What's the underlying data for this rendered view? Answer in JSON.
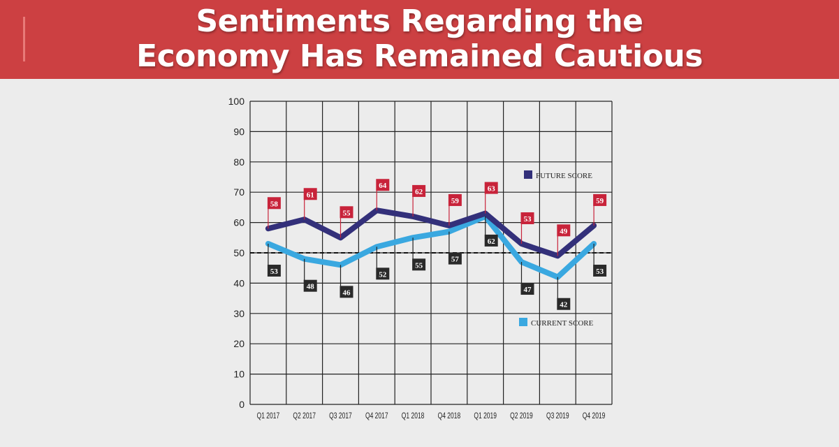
{
  "header": {
    "title_line1": "Sentiments Regarding the",
    "title_line2": "Economy Has Remained Cautious"
  },
  "colors": {
    "banner": "#cc4042",
    "future_line": "#33307a",
    "current_line": "#3aa8e0",
    "future_label_bg": "#c8233a",
    "current_label_bg": "#2a2a2a",
    "grid": "#222222",
    "background": "#ececec"
  },
  "chart_data": {
    "type": "line",
    "categories": [
      "Q1 2017",
      "Q2 2017",
      "Q3 2017",
      "Q4 2017",
      "Q1 2018",
      "Q4 2018",
      "Q1 2019",
      "Q2 2019",
      "Q3 2019",
      "Q4 2019"
    ],
    "series": [
      {
        "name": "FUTURE SCORE",
        "values": [
          58,
          61,
          55,
          64,
          62,
          59,
          63,
          53,
          49,
          59
        ]
      },
      {
        "name": "CURRENT SCORE",
        "values": [
          53,
          48,
          46,
          52,
          55,
          57,
          62,
          47,
          42,
          53
        ]
      }
    ],
    "ylim": [
      0,
      100
    ],
    "yticks": [
      "0",
      "10",
      "20",
      "30",
      "40",
      "50",
      "60",
      "70",
      "80",
      "90",
      "100"
    ],
    "reference_line": 50,
    "grid": true,
    "legend_position": "right"
  }
}
